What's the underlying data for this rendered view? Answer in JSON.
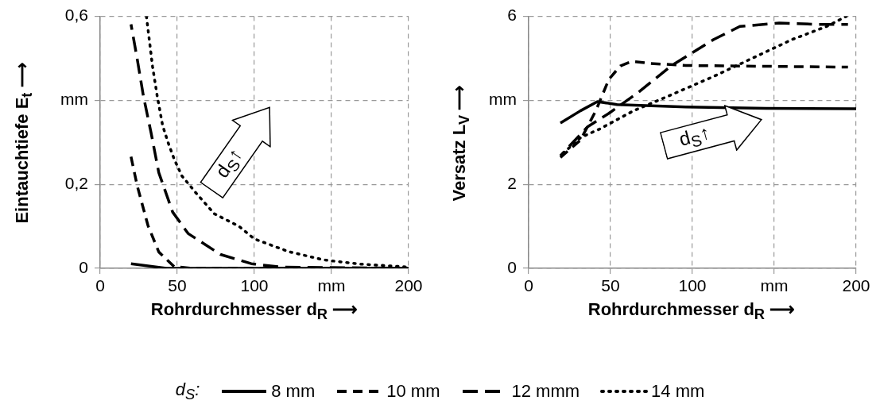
{
  "chart_data": [
    {
      "type": "line",
      "xlabel": "Rohrdurchmesser d$_{R}$ ⟶",
      "ylabel": "Eintauchtiefe E$_{t}$ ⟶",
      "legend_title": "d$_{S}$:",
      "legend": "bottom",
      "grid": true,
      "annotations": [
        "d$_{S}$↑"
      ],
      "xlim": [
        0,
        200
      ],
      "xticks": [
        0,
        50,
        100,
        {
          "value": 150,
          "label": "mm"
        },
        200
      ],
      "ylim": [
        0,
        0.6
      ],
      "yticks": [
        0,
        {
          "value": 0.2,
          "label": "0,2"
        },
        {
          "value": 0.4,
          "label": "mm"
        },
        {
          "value": 0.6,
          "label": "0,6"
        }
      ],
      "series": [
        {
          "name": "8 mm",
          "color": "#000000",
          "line_style": "solid",
          "x": [
            20,
            43,
            100,
            200
          ],
          "values": [
            0.011,
            0,
            0,
            0
          ]
        },
        {
          "name": "10 mm",
          "color": "#000000",
          "line_style": "dashed",
          "x": [
            20,
            24,
            31,
            38,
            48,
            60,
            200
          ],
          "values": [
            0.266,
            0.197,
            0.102,
            0.039,
            0.004,
            0,
            0
          ]
        },
        {
          "name": "12 mmm",
          "color": "#000000",
          "line_style": "dashed",
          "x": [
            20,
            24,
            28,
            33,
            38,
            47,
            57,
            78,
            98,
            117,
            200
          ],
          "values": [
            0.581,
            0.499,
            0.411,
            0.323,
            0.228,
            0.134,
            0.083,
            0.033,
            0.011,
            0.003,
            0
          ]
        },
        {
          "name": "14 mm",
          "color": "#000000",
          "line_style": "dotted",
          "x": [
            30,
            34,
            37,
            40.5,
            44,
            48,
            53,
            62,
            74,
            90,
            100,
            122,
            145,
            169,
            200
          ],
          "values": [
            0.6,
            0.48,
            0.41,
            0.34,
            0.3,
            0.26,
            0.22,
            0.18,
            0.13,
            0.1,
            0.07,
            0.04,
            0.02,
            0.01,
            0.003
          ]
        }
      ]
    },
    {
      "type": "line",
      "xlabel": "Rohrdurchmesser d$_{R}$ ⟶",
      "ylabel": "Versatz L$_{V}$ ⟶",
      "grid": true,
      "annotations": [
        "d$_{S}$↑"
      ],
      "xlim": [
        0,
        200
      ],
      "xticks": [
        0,
        50,
        100,
        {
          "value": 150,
          "label": "mm"
        },
        200
      ],
      "ylim": [
        0,
        6
      ],
      "yticks": [
        0,
        2,
        {
          "value": 4,
          "label": "mm"
        },
        6
      ],
      "series": [
        {
          "color": "#000000",
          "line_style": "solid",
          "x": [
            19.4,
            31.6,
            42,
            54,
            96,
            145,
            200
          ],
          "values": [
            3.46,
            3.75,
            3.97,
            3.9,
            3.84,
            3.81,
            3.8
          ]
        },
        {
          "color": "#000000",
          "line_style": "dashed",
          "x": [
            19.4,
            31.6,
            41,
            49,
            56,
            63,
            74,
            96,
            145,
            195
          ],
          "values": [
            2.64,
            3.05,
            3.75,
            4.5,
            4.82,
            4.93,
            4.88,
            4.83,
            4.81,
            4.79
          ]
        },
        {
          "color": "#000000",
          "line_style": "dashed",
          "x": [
            19.4,
            36,
            49,
            67,
            87,
            113,
            129,
            153,
            177,
            195
          ],
          "values": [
            2.68,
            3.37,
            3.69,
            4.19,
            4.82,
            5.45,
            5.76,
            5.84,
            5.81,
            5.81
          ]
        },
        {
          "color": "#000000",
          "line_style": "dotted",
          "x": [
            21,
            32,
            43,
            64,
            87,
            113,
            137,
            161,
            182,
            194
          ],
          "values": [
            2.74,
            3.12,
            3.31,
            3.75,
            4.13,
            4.57,
            5.01,
            5.45,
            5.76,
            6.0
          ]
        }
      ]
    }
  ]
}
